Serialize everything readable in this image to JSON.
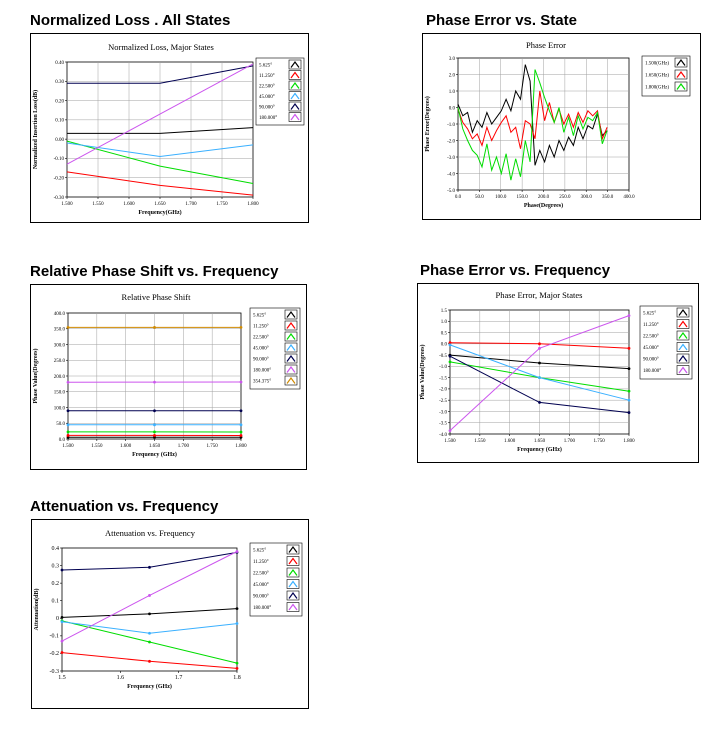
{
  "colors": {
    "black": "#000000",
    "red": "#ff0000",
    "green": "#00dd00",
    "cyan": "#3ab0ff",
    "navy": "#000050",
    "magenta": "#cc55ee",
    "orange": "#d08a00",
    "grid": "#a0a0a0"
  },
  "headings": {
    "loss": "Normalized Loss . All States",
    "phase_error_state": "Phase Error vs. State",
    "relative_phase": "Relative Phase Shift vs. Frequency",
    "phase_error_freq": "Phase Error vs. Frequency",
    "attenuation": "Attenuation vs.  Frequency"
  },
  "chart_data": [
    {
      "id": "loss",
      "type": "line",
      "title": "Normalized Loss, Major States",
      "xlabel": "Frequency(GHz)",
      "ylabel": "Normalized Insertion Loss(dB)",
      "xlim": [
        1.5,
        1.8
      ],
      "ylim": [
        -0.3,
        0.4
      ],
      "xticks": [
        1.5,
        1.55,
        1.6,
        1.65,
        1.7,
        1.75,
        1.8
      ],
      "xtick_labels": [
        "1.500",
        "1.550",
        "1.600",
        "1.650",
        "1.700",
        "1.750",
        "1.800"
      ],
      "yticks": [
        -0.3,
        -0.2,
        -0.1,
        0,
        0.1,
        0.2,
        0.3,
        0.4
      ],
      "ytick_labels": [
        "-0.30",
        "-0.20",
        "-0.10",
        "0.00",
        "0.10",
        "0.20",
        "0.30",
        "0.40"
      ],
      "grid": true,
      "legend": "right",
      "x": [
        1.5,
        1.65,
        1.8
      ],
      "series": [
        {
          "name": "5.625°",
          "color": "black",
          "values": [
            0.03,
            0.03,
            0.06
          ]
        },
        {
          "name": "11.250°",
          "color": "red",
          "values": [
            -0.17,
            -0.24,
            -0.29
          ]
        },
        {
          "name": "22.500°",
          "color": "green",
          "values": [
            -0.01,
            -0.14,
            -0.23
          ]
        },
        {
          "name": "45.000°",
          "color": "cyan",
          "values": [
            -0.02,
            -0.09,
            -0.03
          ]
        },
        {
          "name": "90.000°",
          "color": "navy",
          "values": [
            0.29,
            0.29,
            0.38
          ]
        },
        {
          "name": "180.000°",
          "color": "magenta",
          "values": [
            -0.13,
            0.13,
            0.39
          ]
        }
      ]
    },
    {
      "id": "phase_error_state",
      "type": "line",
      "title": "Phase Error",
      "xlabel": "Phase(Degrees)",
      "ylabel": "Phase Error(Degrees)",
      "xlim": [
        0,
        400
      ],
      "ylim": [
        -5,
        3
      ],
      "xticks": [
        0,
        50,
        100,
        150,
        200,
        250,
        300,
        350,
        400
      ],
      "xtick_labels": [
        "0.0",
        "50.0",
        "100.0",
        "150.0",
        "200.0",
        "250.0",
        "300.0",
        "350.0",
        "400.0"
      ],
      "yticks": [
        -5,
        -4,
        -3,
        -2,
        -1,
        0,
        1,
        2,
        3
      ],
      "ytick_labels": [
        "-5.0",
        "-4.0",
        "-3.0",
        "-2.0",
        "-1.0",
        "0.0",
        "1.0",
        "2.0",
        "3.0"
      ],
      "grid": true,
      "legend": "right",
      "x": [
        0,
        11.25,
        22.5,
        33.75,
        45,
        56.25,
        67.5,
        78.75,
        90,
        101.25,
        112.5,
        123.75,
        135,
        146.25,
        157.5,
        168.75,
        180,
        191.25,
        202.5,
        213.75,
        225,
        236.25,
        247.5,
        258.75,
        270,
        281.25,
        292.5,
        303.75,
        315,
        326.25,
        337.5,
        348.75
      ],
      "series": [
        {
          "name": "1.500(GHz)",
          "color": "black",
          "values": [
            0.2,
            -0.5,
            -0.3,
            -1.5,
            -0.8,
            -1.2,
            -0.3,
            -1.0,
            -0.6,
            -0.2,
            0.5,
            -0.2,
            1.0,
            0.5,
            2.6,
            1.6,
            -3.5,
            -2.6,
            -3.3,
            -2.3,
            -3.0,
            -2.0,
            -2.6,
            -1.8,
            -2.3,
            -1.2,
            -1.9,
            -1.1,
            -1.3,
            -0.4,
            -1.7,
            -1.4
          ]
        },
        {
          "name": "1.650(GHz)",
          "color": "red",
          "values": [
            -0.1,
            -0.9,
            -1.3,
            -1.9,
            -1.6,
            -2.3,
            -1.2,
            -2.0,
            -1.4,
            -0.9,
            -0.5,
            -1.5,
            -1.2,
            -2.5,
            -0.8,
            -1.0,
            -1.9,
            1.0,
            -0.8,
            0.3,
            -0.9,
            -0.1,
            -1.0,
            -0.4,
            -1.2,
            -0.3,
            -0.9,
            -0.2,
            -0.5,
            -0.2,
            -1.9,
            -1.2
          ]
        },
        {
          "name": "1.800(GHz)",
          "color": "green",
          "values": [
            0.0,
            -1.3,
            -2.0,
            -2.6,
            -2.9,
            -3.6,
            -2.2,
            -3.8,
            -3.0,
            -4.0,
            -2.8,
            -4.4,
            -3.1,
            -4.2,
            -2.0,
            -3.3,
            2.3,
            1.5,
            0.6,
            -0.2,
            -0.9,
            0.0,
            -1.5,
            -0.6,
            -1.7,
            -0.5,
            -1.3,
            -0.6,
            -0.8,
            -0.3,
            -2.2,
            -1.4
          ]
        }
      ]
    },
    {
      "id": "relative_phase",
      "type": "line",
      "title": "Relative Phase Shift",
      "xlabel": "Frequency (GHz)",
      "ylabel": "Phase Value(Degrees)",
      "xlim": [
        1.5,
        1.8
      ],
      "ylim": [
        0,
        400
      ],
      "xticks": [
        1.5,
        1.55,
        1.6,
        1.65,
        1.7,
        1.75,
        1.8
      ],
      "xtick_labels": [
        "1.500",
        "1.550",
        "1.600",
        "1.650",
        "1.700",
        "1.750",
        "1.800"
      ],
      "yticks": [
        0,
        50,
        100,
        150,
        200,
        250,
        300,
        350,
        400
      ],
      "ytick_labels": [
        "0.0",
        "50.0",
        "100.0",
        "150.0",
        "200.0",
        "250.0",
        "300.0",
        "350.0",
        "400.0"
      ],
      "grid": true,
      "legend": "right",
      "x": [
        1.5,
        1.65,
        1.8
      ],
      "series": [
        {
          "name": "5.625°",
          "color": "black",
          "values": [
            5.6,
            5.6,
            5.6
          ]
        },
        {
          "name": "11.250°",
          "color": "red",
          "values": [
            11.3,
            11.3,
            11.2
          ]
        },
        {
          "name": "22.500°",
          "color": "green",
          "values": [
            22.5,
            22.4,
            22.3
          ]
        },
        {
          "name": "45.000°",
          "color": "cyan",
          "values": [
            45,
            45,
            45
          ]
        },
        {
          "name": "90.000°",
          "color": "navy",
          "values": [
            89.5,
            89.5,
            89.5
          ]
        },
        {
          "name": "180.000°",
          "color": "magenta",
          "values": [
            180,
            180.5,
            181
          ]
        },
        {
          "name": "354.375°",
          "color": "orange",
          "values": [
            354.4,
            354.4,
            354.4
          ]
        }
      ]
    },
    {
      "id": "phase_error_freq",
      "type": "line",
      "title": "Phase Error, Major States",
      "xlabel": "Frequency (GHz)",
      "ylabel": "Phase Value(Degrees)",
      "xlim": [
        1.5,
        1.8
      ],
      "ylim": [
        -4,
        1.5
      ],
      "xticks": [
        1.5,
        1.55,
        1.6,
        1.65,
        1.7,
        1.75,
        1.8
      ],
      "xtick_labels": [
        "1.500",
        "1.550",
        "1.600",
        "1.650",
        "1.700",
        "1.750",
        "1.800"
      ],
      "yticks": [
        -4,
        -3.5,
        -3,
        -2.5,
        -2,
        -1.5,
        -1,
        -0.5,
        0,
        0.5,
        1,
        1.5
      ],
      "ytick_labels": [
        "-4.0",
        "-3.5",
        "-3.0",
        "-2.5",
        "-2.0",
        "-1.5",
        "-1.0",
        "-0.5",
        "0.0",
        "0.5",
        "1.0",
        "1.5"
      ],
      "grid": true,
      "legend": "right",
      "x": [
        1.5,
        1.65,
        1.8
      ],
      "series": [
        {
          "name": "5.625°",
          "color": "black",
          "values": [
            -0.5,
            -0.85,
            -1.1
          ]
        },
        {
          "name": "11.250°",
          "color": "red",
          "values": [
            0.05,
            0.0,
            -0.2
          ]
        },
        {
          "name": "22.500°",
          "color": "green",
          "values": [
            -0.8,
            -1.5,
            -2.1
          ]
        },
        {
          "name": "45.000°",
          "color": "cyan",
          "values": [
            -0.05,
            -1.5,
            -2.5
          ]
        },
        {
          "name": "90.000°",
          "color": "navy",
          "values": [
            -0.55,
            -2.6,
            -3.05
          ]
        },
        {
          "name": "180.000°",
          "color": "magenta",
          "values": [
            -3.85,
            -0.2,
            1.25
          ]
        }
      ]
    },
    {
      "id": "attenuation",
      "type": "line",
      "title": "Attenuation vs. Frequency",
      "xlabel": "Frequency (GHz)",
      "ylabel": "Attenuation(dB)",
      "xlim": [
        1.5,
        1.8
      ],
      "ylim": [
        -0.3,
        0.4
      ],
      "xticks": [
        1.5,
        1.6,
        1.7,
        1.8
      ],
      "xtick_labels": [
        "1.5",
        "1.6",
        "1.7",
        "1.8"
      ],
      "yticks": [
        -0.3,
        -0.2,
        -0.1,
        0,
        0.1,
        0.2,
        0.3,
        0.4
      ],
      "ytick_labels": [
        "-0.3",
        "-0.2",
        "-0.1",
        "0",
        "0.1",
        "0.2",
        "0.3",
        "0.4"
      ],
      "grid": false,
      "legend": "right",
      "x": [
        1.5,
        1.65,
        1.8
      ],
      "series": [
        {
          "name": "5.625°",
          "color": "black",
          "values": [
            0.005,
            0.025,
            0.055
          ]
        },
        {
          "name": "11.250°",
          "color": "red",
          "values": [
            -0.195,
            -0.245,
            -0.285
          ]
        },
        {
          "name": "22.500°",
          "color": "green",
          "values": [
            -0.015,
            -0.135,
            -0.255
          ]
        },
        {
          "name": "45.000°",
          "color": "cyan",
          "values": [
            -0.02,
            -0.085,
            -0.03
          ]
        },
        {
          "name": "90.000°",
          "color": "navy",
          "values": [
            0.275,
            0.29,
            0.375
          ]
        },
        {
          "name": "180.000°",
          "color": "magenta",
          "values": [
            -0.13,
            0.13,
            0.38
          ]
        }
      ]
    }
  ]
}
